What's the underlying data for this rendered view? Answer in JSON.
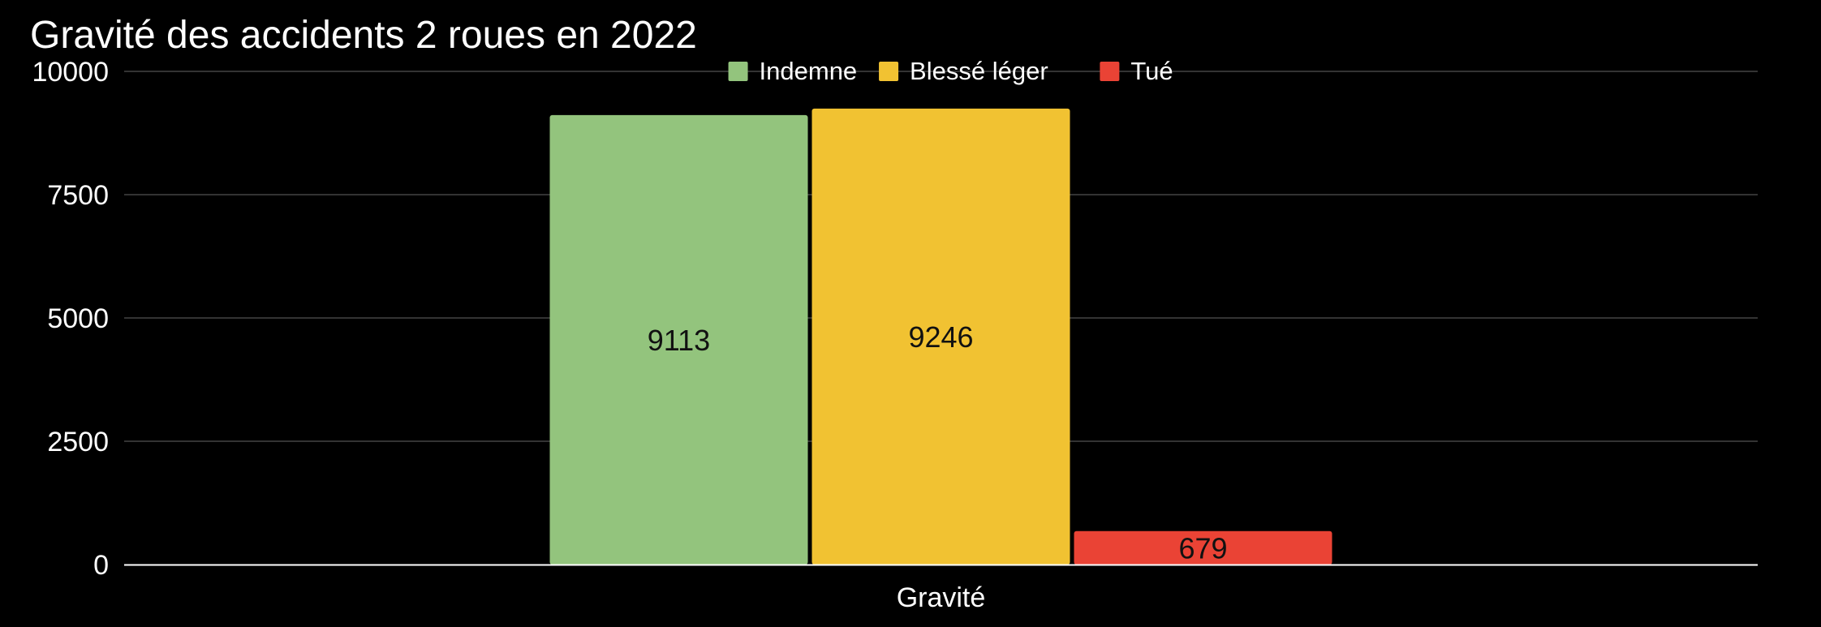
{
  "chart_data": {
    "type": "bar",
    "title": "Gravité des accidents 2 roues en 2022",
    "xlabel": "Gravité",
    "ylabel": "",
    "categories": [
      "Gravité"
    ],
    "series": [
      {
        "name": "Indemne",
        "values": [
          9113
        ],
        "color": "#93c47d"
      },
      {
        "name": "Blessé léger",
        "values": [
          9246
        ],
        "color": "#f1c232"
      },
      {
        "name": "Tué",
        "values": [
          679
        ],
        "color": "#ea4335"
      }
    ],
    "ylim": [
      0,
      10000
    ],
    "yticks": [
      0,
      2500,
      5000,
      7500,
      10000
    ],
    "grid": true,
    "legend": "top-center",
    "data_labels": true
  },
  "colors": {
    "background": "#000000",
    "text": "#ffffff",
    "gridline": "#444444",
    "axis": "#ffffff",
    "data_label": "#111111"
  }
}
